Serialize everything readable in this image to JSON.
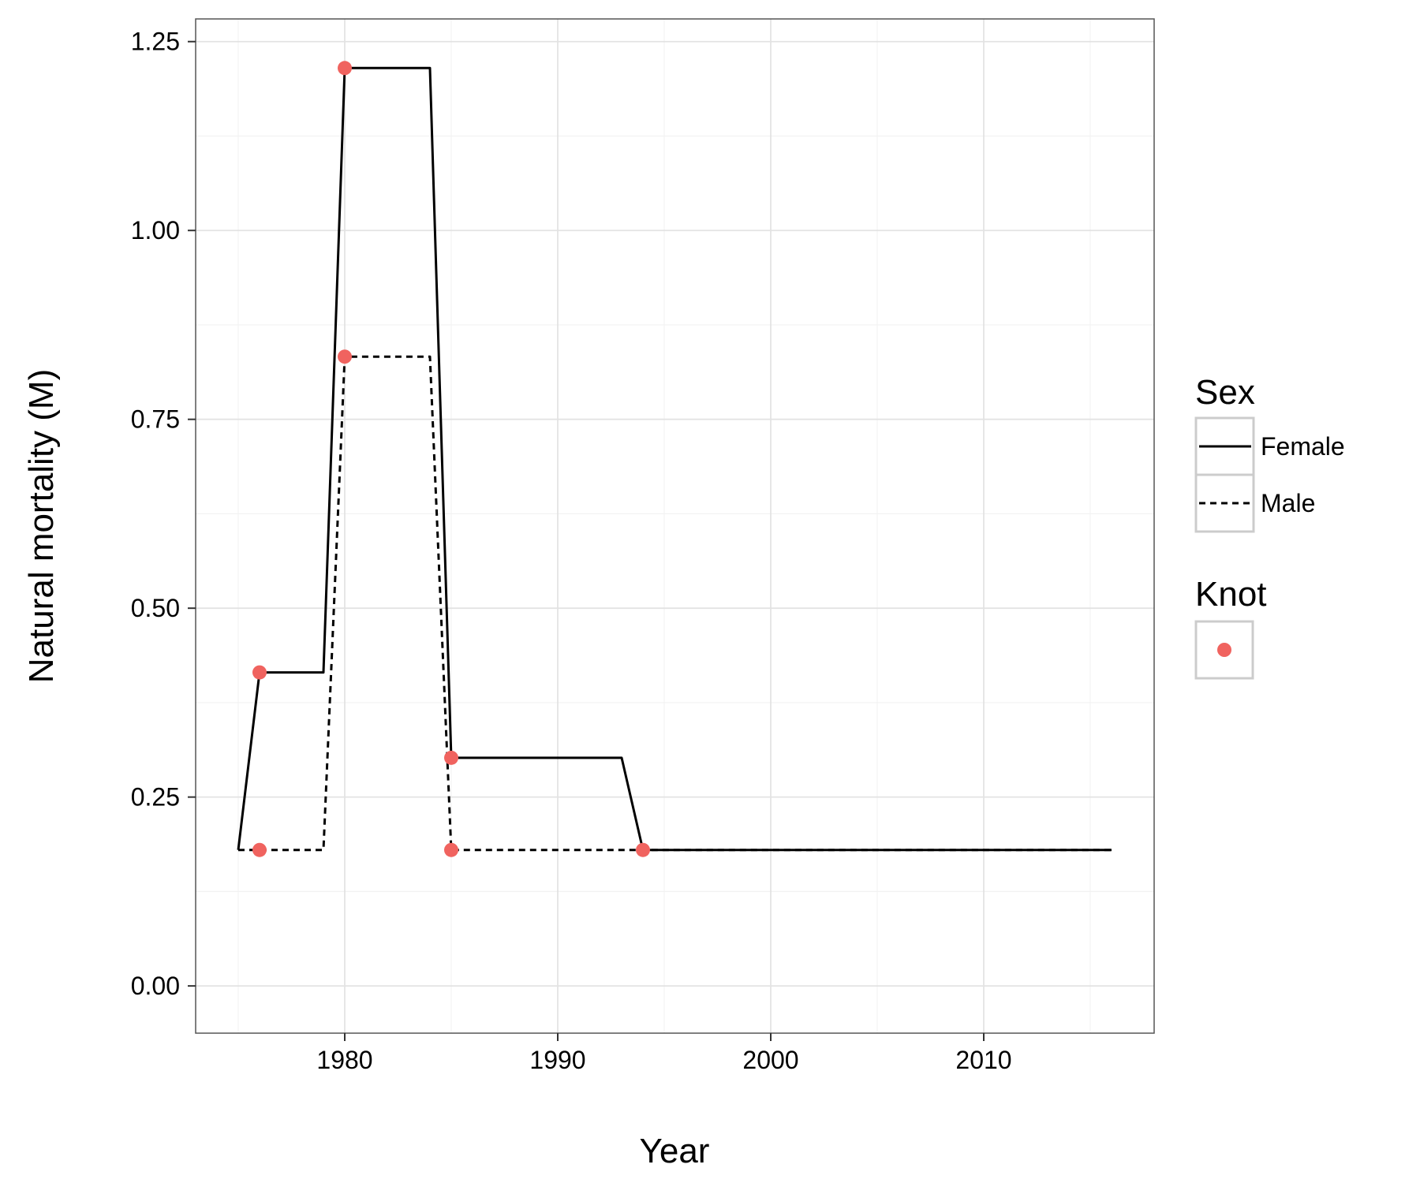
{
  "chart_data": {
    "type": "line",
    "xlabel": "Year",
    "ylabel": "Natural mortality (M)",
    "xlim": [
      1973,
      2018
    ],
    "ylim": [
      -0.0625,
      1.28
    ],
    "x_ticks": [
      1980,
      1990,
      2000,
      2010
    ],
    "x_minor_ticks": [
      1975,
      1985,
      1995,
      2005,
      2015
    ],
    "y_ticks": [
      0,
      0.25,
      0.5,
      0.75,
      1.0,
      1.25
    ],
    "y_tick_labels": [
      "0.00",
      "0.25",
      "0.50",
      "0.75",
      "1.00",
      "1.25"
    ],
    "y_minor_ticks": [
      0.125,
      0.375,
      0.625,
      0.875,
      1.125
    ],
    "grid": true,
    "series": [
      {
        "name": "Female",
        "line_style": "solid",
        "color": "#000000",
        "x": [
          1975,
          1976,
          1979,
          1980,
          1984,
          1985,
          1993,
          1994,
          2016
        ],
        "y": [
          0.18,
          0.415,
          0.415,
          1.215,
          1.215,
          0.302,
          0.302,
          0.18,
          0.18
        ]
      },
      {
        "name": "Male",
        "line_style": "dashed",
        "color": "#000000",
        "x": [
          1975,
          1976,
          1979,
          1980,
          1984,
          1985,
          1994,
          2016
        ],
        "y": [
          0.18,
          0.18,
          0.18,
          0.833,
          0.833,
          0.18,
          0.18,
          0.18
        ]
      }
    ],
    "knots": {
      "color": "#F0635F",
      "points": [
        {
          "x": 1976,
          "y": 0.415
        },
        {
          "x": 1976,
          "y": 0.18
        },
        {
          "x": 1980,
          "y": 1.215
        },
        {
          "x": 1980,
          "y": 0.833
        },
        {
          "x": 1985,
          "y": 0.302
        },
        {
          "x": 1985,
          "y": 0.18
        },
        {
          "x": 1994,
          "y": 0.18
        }
      ]
    },
    "legend": {
      "placement": "right",
      "sex_title": "Sex",
      "sex_items": [
        {
          "label": "Female",
          "line_style": "solid"
        },
        {
          "label": "Male",
          "line_style": "dashed"
        }
      ],
      "knot_title": "Knot"
    }
  }
}
